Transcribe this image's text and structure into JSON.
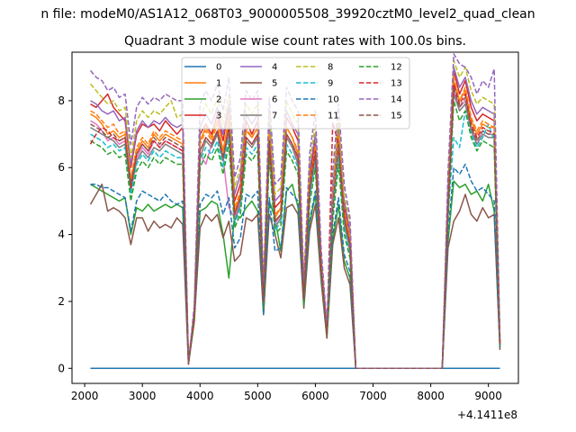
{
  "figure": {
    "suptitle": "n file: modeM0/AS1A12_068T03_9000005508_39920cztM0_level2_quad_clean",
    "offset_label": "+4.1411e8"
  },
  "chart_data": {
    "type": "line",
    "title": "Quadrant 3 module wise count rates with 100.0s bins.",
    "xlabel": "",
    "ylabel": "",
    "xlim": [
      1780,
      9520
    ],
    "ylim": [
      -0.45,
      9.45
    ],
    "x_ticks": [
      2000,
      3000,
      4000,
      5000,
      6000,
      7000,
      8000,
      9000
    ],
    "x_tick_labels": [
      "2000",
      "3000",
      "4000",
      "5000",
      "6000",
      "7000",
      "8000",
      "9000"
    ],
    "y_ticks": [
      0,
      2,
      4,
      6,
      8
    ],
    "y_tick_labels": [
      "0",
      "2",
      "4",
      "6",
      "8"
    ],
    "grid": false,
    "legend_position": "top-center",
    "legend_columns": 4,
    "x": [
      2100,
      2200,
      2300,
      2400,
      2500,
      2600,
      2700,
      2800,
      2900,
      3000,
      3100,
      3200,
      3300,
      3400,
      3500,
      3600,
      3700,
      3800,
      3900,
      4000,
      4100,
      4200,
      4300,
      4400,
      4500,
      4600,
      4700,
      4800,
      4900,
      5000,
      5100,
      5200,
      5300,
      5400,
      5500,
      5600,
      5700,
      5800,
      5900,
      6000,
      6100,
      6200,
      6300,
      6400,
      6500,
      6600,
      6700,
      8200,
      8300,
      8400,
      8500,
      8600,
      8700,
      8800,
      8900,
      9000,
      9100,
      9200
    ],
    "series": [
      {
        "name": "0",
        "color": "#1f77b4",
        "dash": "solid",
        "values": [
          0,
          0,
          0,
          0,
          0,
          0,
          0,
          0,
          0,
          0,
          0,
          0,
          0,
          0,
          0,
          0,
          0,
          0,
          0,
          0,
          0,
          0,
          0,
          0,
          0,
          0,
          0,
          0,
          0,
          0,
          0,
          0,
          0,
          0,
          0,
          0,
          0,
          0,
          0,
          0,
          0,
          0,
          0,
          0,
          0,
          0,
          0,
          0,
          0,
          0,
          0,
          0,
          0,
          0,
          0,
          0,
          0,
          0
        ]
      },
      {
        "name": "1",
        "color": "#ff7f0e",
        "dash": "solid",
        "values": [
          7.6,
          7.5,
          7.3,
          7.0,
          7.1,
          6.9,
          7.0,
          5.6,
          6.5,
          6.8,
          6.6,
          7.0,
          6.8,
          7.0,
          6.9,
          6.8,
          6.7,
          0.15,
          1.6,
          6.8,
          7.2,
          6.9,
          7.4,
          6.5,
          7.5,
          4.7,
          5.2,
          7.1,
          6.9,
          7.2,
          2.1,
          7.0,
          4.5,
          4.8,
          7.2,
          6.9,
          6.4,
          2.2,
          5.5,
          6.6,
          3.0,
          1.1,
          5.0,
          6.8,
          4.6,
          3.8,
          0,
          0,
          5.0,
          8.6,
          8.0,
          8.3,
          7.4,
          7.0,
          7.3,
          7.2,
          7.2,
          0.7
        ]
      },
      {
        "name": "2",
        "color": "#2ca02c",
        "dash": "solid",
        "values": [
          5.5,
          5.4,
          5.3,
          5.2,
          5.1,
          5.0,
          5.1,
          4.0,
          4.8,
          4.7,
          4.9,
          4.7,
          4.8,
          4.9,
          4.8,
          4.9,
          4.8,
          0.15,
          1.5,
          4.7,
          4.8,
          5.0,
          4.9,
          4.0,
          2.7,
          4.6,
          4.5,
          4.8,
          5.0,
          4.7,
          1.8,
          5.0,
          4.5,
          3.5,
          5.3,
          5.5,
          4.8,
          2.0,
          4.3,
          5.2,
          2.8,
          1.0,
          3.8,
          4.9,
          3.2,
          2.7,
          0,
          0,
          3.8,
          5.6,
          5.4,
          5.5,
          5.2,
          5.3,
          5.0,
          5.5,
          4.7,
          0.6
        ]
      },
      {
        "name": "3",
        "color": "#d62728",
        "dash": "solid",
        "values": [
          7.9,
          7.8,
          8.0,
          8.2,
          7.8,
          7.6,
          7.4,
          6.0,
          7.0,
          7.3,
          7.2,
          7.3,
          7.1,
          7.4,
          7.2,
          7.0,
          7.2,
          0.15,
          1.7,
          7.0,
          7.3,
          7.0,
          7.6,
          6.8,
          7.8,
          5.0,
          5.5,
          7.4,
          7.0,
          7.4,
          2.2,
          7.2,
          4.8,
          5.0,
          7.5,
          7.2,
          6.8,
          2.3,
          5.7,
          6.9,
          3.2,
          1.1,
          5.2,
          7.3,
          4.8,
          4.0,
          0,
          0,
          5.2,
          8.9,
          8.2,
          8.6,
          7.8,
          7.4,
          7.6,
          7.5,
          7.4,
          0.8
        ]
      },
      {
        "name": "4",
        "color": "#9467bd",
        "dash": "solid",
        "values": [
          8.0,
          7.9,
          7.7,
          7.6,
          7.7,
          7.4,
          7.5,
          6.1,
          7.1,
          7.4,
          7.2,
          7.4,
          7.3,
          7.5,
          7.3,
          7.2,
          7.3,
          0.15,
          1.7,
          7.2,
          7.6,
          7.3,
          7.8,
          7.0,
          7.9,
          5.2,
          5.8,
          7.6,
          7.3,
          7.6,
          2.3,
          7.4,
          5.0,
          5.2,
          7.7,
          7.3,
          7.0,
          2.4,
          5.9,
          7.0,
          3.3,
          1.2,
          5.4,
          7.2,
          5.0,
          4.1,
          0,
          0,
          5.4,
          9.0,
          8.4,
          8.7,
          8.0,
          7.6,
          7.8,
          7.7,
          7.6,
          0.8
        ]
      },
      {
        "name": "5",
        "color": "#8c564b",
        "dash": "solid",
        "values": [
          4.9,
          5.2,
          5.5,
          4.7,
          4.8,
          4.7,
          4.5,
          3.7,
          4.5,
          4.5,
          4.1,
          4.4,
          4.2,
          4.3,
          4.2,
          4.5,
          4.3,
          0.12,
          1.4,
          4.2,
          4.6,
          4.4,
          4.6,
          3.9,
          4.4,
          3.2,
          3.4,
          4.5,
          4.4,
          4.6,
          1.6,
          4.6,
          4.0,
          3.3,
          4.8,
          4.9,
          4.6,
          1.8,
          4.1,
          4.9,
          2.6,
          0.9,
          3.7,
          4.5,
          3.0,
          2.5,
          0,
          0,
          3.6,
          4.4,
          4.7,
          5.2,
          4.6,
          4.4,
          4.8,
          4.5,
          4.6,
          0.55
        ]
      },
      {
        "name": "6",
        "color": "#e377c2",
        "dash": "solid",
        "values": [
          7.4,
          7.3,
          7.1,
          6.8,
          6.9,
          6.7,
          6.8,
          5.4,
          6.3,
          6.6,
          6.4,
          6.8,
          6.6,
          6.8,
          6.7,
          6.6,
          6.5,
          0.14,
          1.5,
          6.4,
          6.1,
          6.7,
          7.1,
          6.3,
          4.8,
          4.5,
          5.0,
          6.9,
          6.7,
          7.0,
          2.0,
          6.8,
          4.3,
          4.6,
          7.0,
          6.7,
          6.2,
          2.1,
          5.3,
          6.4,
          2.9,
          1.0,
          4.8,
          6.6,
          4.4,
          3.6,
          0,
          0,
          4.8,
          8.3,
          7.8,
          8.0,
          7.2,
          6.8,
          7.1,
          7.0,
          7.0,
          0.7
        ]
      },
      {
        "name": "7",
        "color": "#7f7f7f",
        "dash": "solid",
        "values": [
          7.2,
          7.1,
          7.0,
          6.9,
          6.8,
          6.6,
          6.7,
          5.3,
          6.2,
          6.5,
          6.3,
          6.6,
          6.5,
          6.7,
          6.6,
          6.5,
          6.4,
          0.14,
          1.5,
          6.3,
          6.8,
          6.6,
          7.0,
          6.2,
          7.1,
          4.4,
          4.9,
          6.8,
          6.6,
          6.9,
          2.0,
          6.7,
          4.2,
          4.5,
          6.9,
          6.6,
          6.1,
          2.1,
          5.2,
          6.3,
          2.9,
          1.0,
          4.7,
          6.5,
          4.3,
          3.5,
          0,
          0,
          4.7,
          8.2,
          7.7,
          7.9,
          7.1,
          6.7,
          7.0,
          6.9,
          6.9,
          0.7
        ]
      },
      {
        "name": "8",
        "color": "#bcbd22",
        "dash": "dashed",
        "values": [
          8.5,
          8.3,
          8.1,
          7.9,
          8.0,
          7.7,
          7.8,
          6.3,
          7.4,
          7.7,
          7.5,
          7.7,
          7.6,
          7.8,
          8.0,
          7.5,
          7.6,
          0.16,
          1.8,
          7.5,
          7.9,
          7.6,
          8.1,
          7.3,
          8.2,
          5.4,
          6.0,
          7.9,
          7.6,
          7.9,
          2.4,
          7.7,
          5.2,
          5.4,
          8.0,
          7.6,
          7.3,
          2.5,
          6.1,
          7.3,
          3.4,
          1.2,
          5.6,
          7.5,
          5.2,
          4.3,
          0,
          0,
          5.6,
          9.2,
          8.7,
          9.0,
          8.3,
          7.9,
          8.1,
          8.0,
          7.9,
          0.85
        ]
      },
      {
        "name": "9",
        "color": "#17becf",
        "dash": "dashed",
        "values": [
          7.0,
          6.9,
          6.8,
          6.6,
          6.7,
          6.5,
          6.6,
          5.2,
          6.1,
          6.4,
          6.2,
          6.5,
          6.3,
          6.5,
          6.4,
          6.3,
          6.3,
          0.13,
          1.5,
          6.2,
          6.6,
          6.4,
          6.8,
          6.0,
          6.9,
          4.3,
          4.8,
          6.6,
          6.4,
          6.7,
          1.9,
          6.5,
          4.1,
          4.4,
          6.7,
          6.4,
          6.0,
          2.0,
          5.1,
          6.2,
          2.8,
          1.0,
          4.6,
          6.3,
          4.2,
          3.4,
          0,
          0,
          4.6,
          6.9,
          6.6,
          7.7,
          7.0,
          6.6,
          6.9,
          7.3,
          6.8,
          0.68
        ]
      },
      {
        "name": "10",
        "color": "#1f77b4",
        "dash": "dashed",
        "values": [
          5.5,
          5.5,
          5.4,
          5.4,
          5.3,
          5.2,
          5.1,
          4.1,
          5.0,
          5.3,
          5.2,
          5.1,
          5.0,
          5.2,
          5.0,
          4.9,
          5.0,
          0.15,
          1.6,
          4.9,
          5.2,
          5.1,
          5.3,
          4.6,
          5.1,
          3.6,
          3.9,
          5.2,
          5.1,
          5.3,
          1.6,
          5.1,
          3.5,
          3.6,
          5.4,
          5.2,
          5.0,
          1.9,
          4.4,
          5.3,
          2.8,
          1.0,
          4.0,
          5.1,
          3.4,
          2.9,
          0,
          0,
          4.0,
          6.0,
          5.8,
          6.1,
          5.6,
          5.3,
          5.4,
          5.2,
          5.0,
          0.6
        ]
      },
      {
        "name": "11",
        "color": "#ff7f0e",
        "dash": "dashed",
        "values": [
          7.7,
          7.6,
          7.4,
          7.2,
          7.3,
          7.0,
          7.1,
          5.7,
          6.6,
          6.9,
          6.7,
          7.1,
          6.9,
          7.1,
          7.0,
          6.9,
          6.8,
          0.15,
          1.6,
          6.7,
          7.1,
          6.8,
          7.3,
          6.5,
          7.4,
          4.8,
          5.3,
          7.2,
          6.9,
          7.2,
          2.1,
          7.0,
          4.6,
          4.8,
          7.2,
          6.9,
          6.5,
          2.2,
          5.5,
          6.6,
          3.0,
          1.1,
          5.0,
          7.0,
          4.7,
          3.9,
          0,
          0,
          5.0,
          8.7,
          8.0,
          8.4,
          7.5,
          7.1,
          7.4,
          7.3,
          7.2,
          0.75
        ]
      },
      {
        "name": "12",
        "color": "#2ca02c",
        "dash": "dashed",
        "values": [
          6.8,
          6.7,
          6.6,
          6.4,
          6.5,
          6.3,
          6.4,
          5.0,
          5.9,
          6.2,
          6.0,
          6.3,
          6.1,
          6.3,
          6.2,
          6.1,
          6.1,
          0.13,
          1.4,
          6.0,
          6.4,
          6.2,
          6.6,
          5.8,
          6.7,
          4.2,
          4.6,
          6.4,
          6.2,
          6.5,
          1.8,
          6.3,
          4.0,
          4.2,
          6.5,
          6.2,
          5.8,
          1.9,
          4.9,
          6.0,
          2.7,
          0.95,
          4.4,
          6.1,
          4.0,
          3.3,
          0,
          0,
          4.4,
          8.0,
          7.4,
          7.7,
          6.9,
          6.5,
          6.8,
          6.7,
          6.6,
          0.66
        ]
      },
      {
        "name": "13",
        "color": "#d62728",
        "dash": "dashed",
        "values": [
          6.7,
          7.0,
          7.2,
          7.1,
          6.9,
          6.8,
          6.9,
          5.4,
          6.4,
          6.7,
          6.5,
          6.8,
          6.6,
          6.8,
          6.7,
          6.6,
          6.5,
          0.14,
          1.5,
          6.5,
          6.9,
          6.7,
          7.1,
          6.3,
          7.2,
          4.6,
          5.1,
          6.9,
          6.7,
          7.0,
          2.0,
          6.8,
          4.4,
          4.6,
          7.0,
          6.7,
          6.3,
          2.1,
          5.4,
          6.5,
          3.0,
          1.05,
          7.35,
          6.7,
          4.5,
          3.7,
          0,
          0,
          4.9,
          8.5,
          7.9,
          8.2,
          7.3,
          6.9,
          7.2,
          7.1,
          7.0,
          0.72
        ]
      },
      {
        "name": "14",
        "color": "#9467bd",
        "dash": "dashed",
        "values": [
          8.9,
          8.7,
          8.6,
          8.3,
          8.4,
          8.1,
          8.2,
          6.7,
          7.8,
          8.1,
          7.9,
          8.1,
          8.0,
          8.2,
          8.1,
          8.0,
          8.0,
          0.17,
          1.9,
          7.9,
          8.3,
          8.0,
          8.5,
          7.7,
          8.7,
          5.7,
          6.3,
          8.3,
          8.0,
          8.3,
          2.5,
          8.1,
          5.5,
          5.7,
          8.4,
          8.0,
          7.7,
          2.6,
          6.4,
          7.7,
          3.6,
          1.3,
          5.9,
          7.9,
          5.5,
          4.5,
          0,
          0,
          5.9,
          9.4,
          9.1,
          9.0,
          8.7,
          8.2,
          8.6,
          8.4,
          8.95,
          0.9
        ]
      },
      {
        "name": "15",
        "color": "#8c564b",
        "dash": "dashed",
        "values": [
          7.3,
          7.2,
          7.1,
          6.9,
          7.0,
          6.8,
          6.9,
          5.5,
          6.4,
          6.7,
          6.5,
          6.9,
          6.7,
          6.9,
          6.8,
          6.7,
          6.6,
          0.14,
          1.6,
          6.5,
          6.9,
          6.7,
          7.1,
          6.3,
          7.2,
          4.6,
          5.1,
          6.9,
          6.7,
          7.0,
          2.0,
          6.8,
          4.4,
          4.6,
          7.0,
          6.7,
          6.3,
          2.1,
          5.3,
          6.4,
          2.9,
          1.0,
          4.8,
          6.7,
          4.5,
          3.7,
          0,
          0,
          4.8,
          8.4,
          7.8,
          8.1,
          7.2,
          6.8,
          7.1,
          7.0,
          7.0,
          0.7
        ]
      }
    ]
  }
}
